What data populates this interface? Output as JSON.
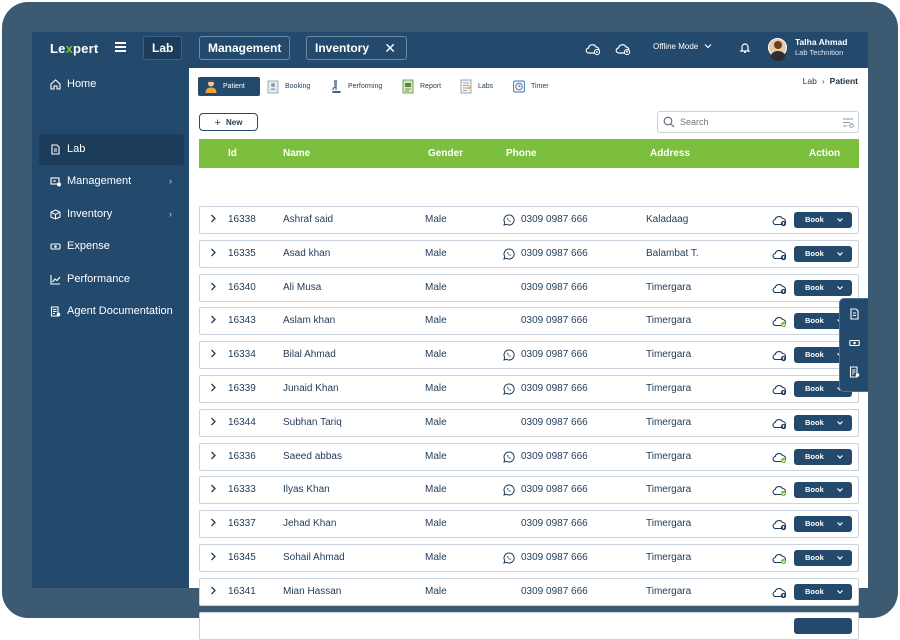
{
  "app": {
    "logo": {
      "pre": "Le",
      "x": "x",
      "post": "pert"
    },
    "tabs": [
      {
        "label": "Lab"
      },
      {
        "label": "Management"
      },
      {
        "label": "Inventory",
        "close": "✕"
      }
    ],
    "offline_mode": "Offline Mode",
    "user": {
      "name": "Talha Ahmad",
      "role": "Lab Technition"
    }
  },
  "sidebar": {
    "items": [
      {
        "label": "Home",
        "icon": "home-icon"
      },
      {
        "label": "Lab",
        "icon": "document-icon"
      },
      {
        "label": "Management",
        "icon": "management-icon",
        "arrow": "›"
      },
      {
        "label": "Inventory",
        "icon": "box-icon",
        "arrow": "›"
      },
      {
        "label": "Expense",
        "icon": "cash-icon"
      },
      {
        "label": "Performance",
        "icon": "chart-icon"
      },
      {
        "label": "Agent Documentation",
        "icon": "doc-list-icon"
      }
    ]
  },
  "subtabs": [
    {
      "label": "Patient",
      "icon": "patient-icon"
    },
    {
      "label": "Booking",
      "icon": "booking-icon"
    },
    {
      "label": "Performing",
      "icon": "microscope-icon"
    },
    {
      "label": "Report",
      "icon": "report-icon"
    },
    {
      "label": "Labs",
      "icon": "labs-icon"
    },
    {
      "label": "Timer",
      "icon": "timer-icon"
    }
  ],
  "breadcrumb": {
    "parent": "Lab",
    "sep": "›",
    "current": "Patient"
  },
  "toolbar": {
    "new_label": "New",
    "new_plus": "+",
    "search_placeholder": "Search"
  },
  "table": {
    "headers": {
      "id": "Id",
      "name": "Name",
      "gender": "Gender",
      "phone": "Phone",
      "address": "Address",
      "action": "Action"
    },
    "action_label": "Book",
    "rows": [
      {
        "id": "16338",
        "name": "Ashraf said",
        "gender": "Male",
        "phone": "0309 0987 666",
        "whatsapp": true,
        "address": "Kaladaag",
        "synced": false
      },
      {
        "id": "16335",
        "name": "Asad khan",
        "gender": "Male",
        "phone": "0309 0987 666",
        "whatsapp": true,
        "address": "Balambat T.",
        "synced": false
      },
      {
        "id": "16340",
        "name": "Ali Musa",
        "gender": "Male",
        "phone": "0309 0987 666",
        "whatsapp": false,
        "address": "Timergara",
        "synced": false
      },
      {
        "id": "16343",
        "name": "Aslam khan",
        "gender": "Male",
        "phone": "0309 0987 666",
        "whatsapp": false,
        "address": "Timergara",
        "synced": true
      },
      {
        "id": "16334",
        "name": "Bilal Ahmad",
        "gender": "Male",
        "phone": "0309 0987 666",
        "whatsapp": true,
        "address": "Timergara",
        "synced": false
      },
      {
        "id": "16339",
        "name": "Junaid Khan",
        "gender": "Male",
        "phone": "0309 0987 666",
        "whatsapp": true,
        "address": "Timergara",
        "synced": false
      },
      {
        "id": "16344",
        "name": "Subhan Tariq",
        "gender": "Male",
        "phone": "0309 0987 666",
        "whatsapp": false,
        "address": "Timergara",
        "synced": false
      },
      {
        "id": "16336",
        "name": "Saeed abbas",
        "gender": "Male",
        "phone": "0309 0987 666",
        "whatsapp": true,
        "address": "Timergara",
        "synced": true
      },
      {
        "id": "16333",
        "name": "Ilyas Khan",
        "gender": "Male",
        "phone": "0309 0987 666",
        "whatsapp": true,
        "address": "Timergara",
        "synced": true
      },
      {
        "id": "16337",
        "name": "Jehad Khan",
        "gender": "Male",
        "phone": "0309 0987 666",
        "whatsapp": false,
        "address": "Timergara",
        "synced": false
      },
      {
        "id": "16345",
        "name": "Sohail Ahmad",
        "gender": "Male",
        "phone": "0309 0987 666",
        "whatsapp": true,
        "address": "Timergara",
        "synced": true
      },
      {
        "id": "16341",
        "name": "Mian Hassan",
        "gender": "Male",
        "phone": "0309 0987 666",
        "whatsapp": false,
        "address": "Timergara",
        "synced": false
      }
    ]
  },
  "colors": {
    "primary": "#23496c",
    "accent_green": "#7cbf3f",
    "frame": "#3d5a73"
  }
}
